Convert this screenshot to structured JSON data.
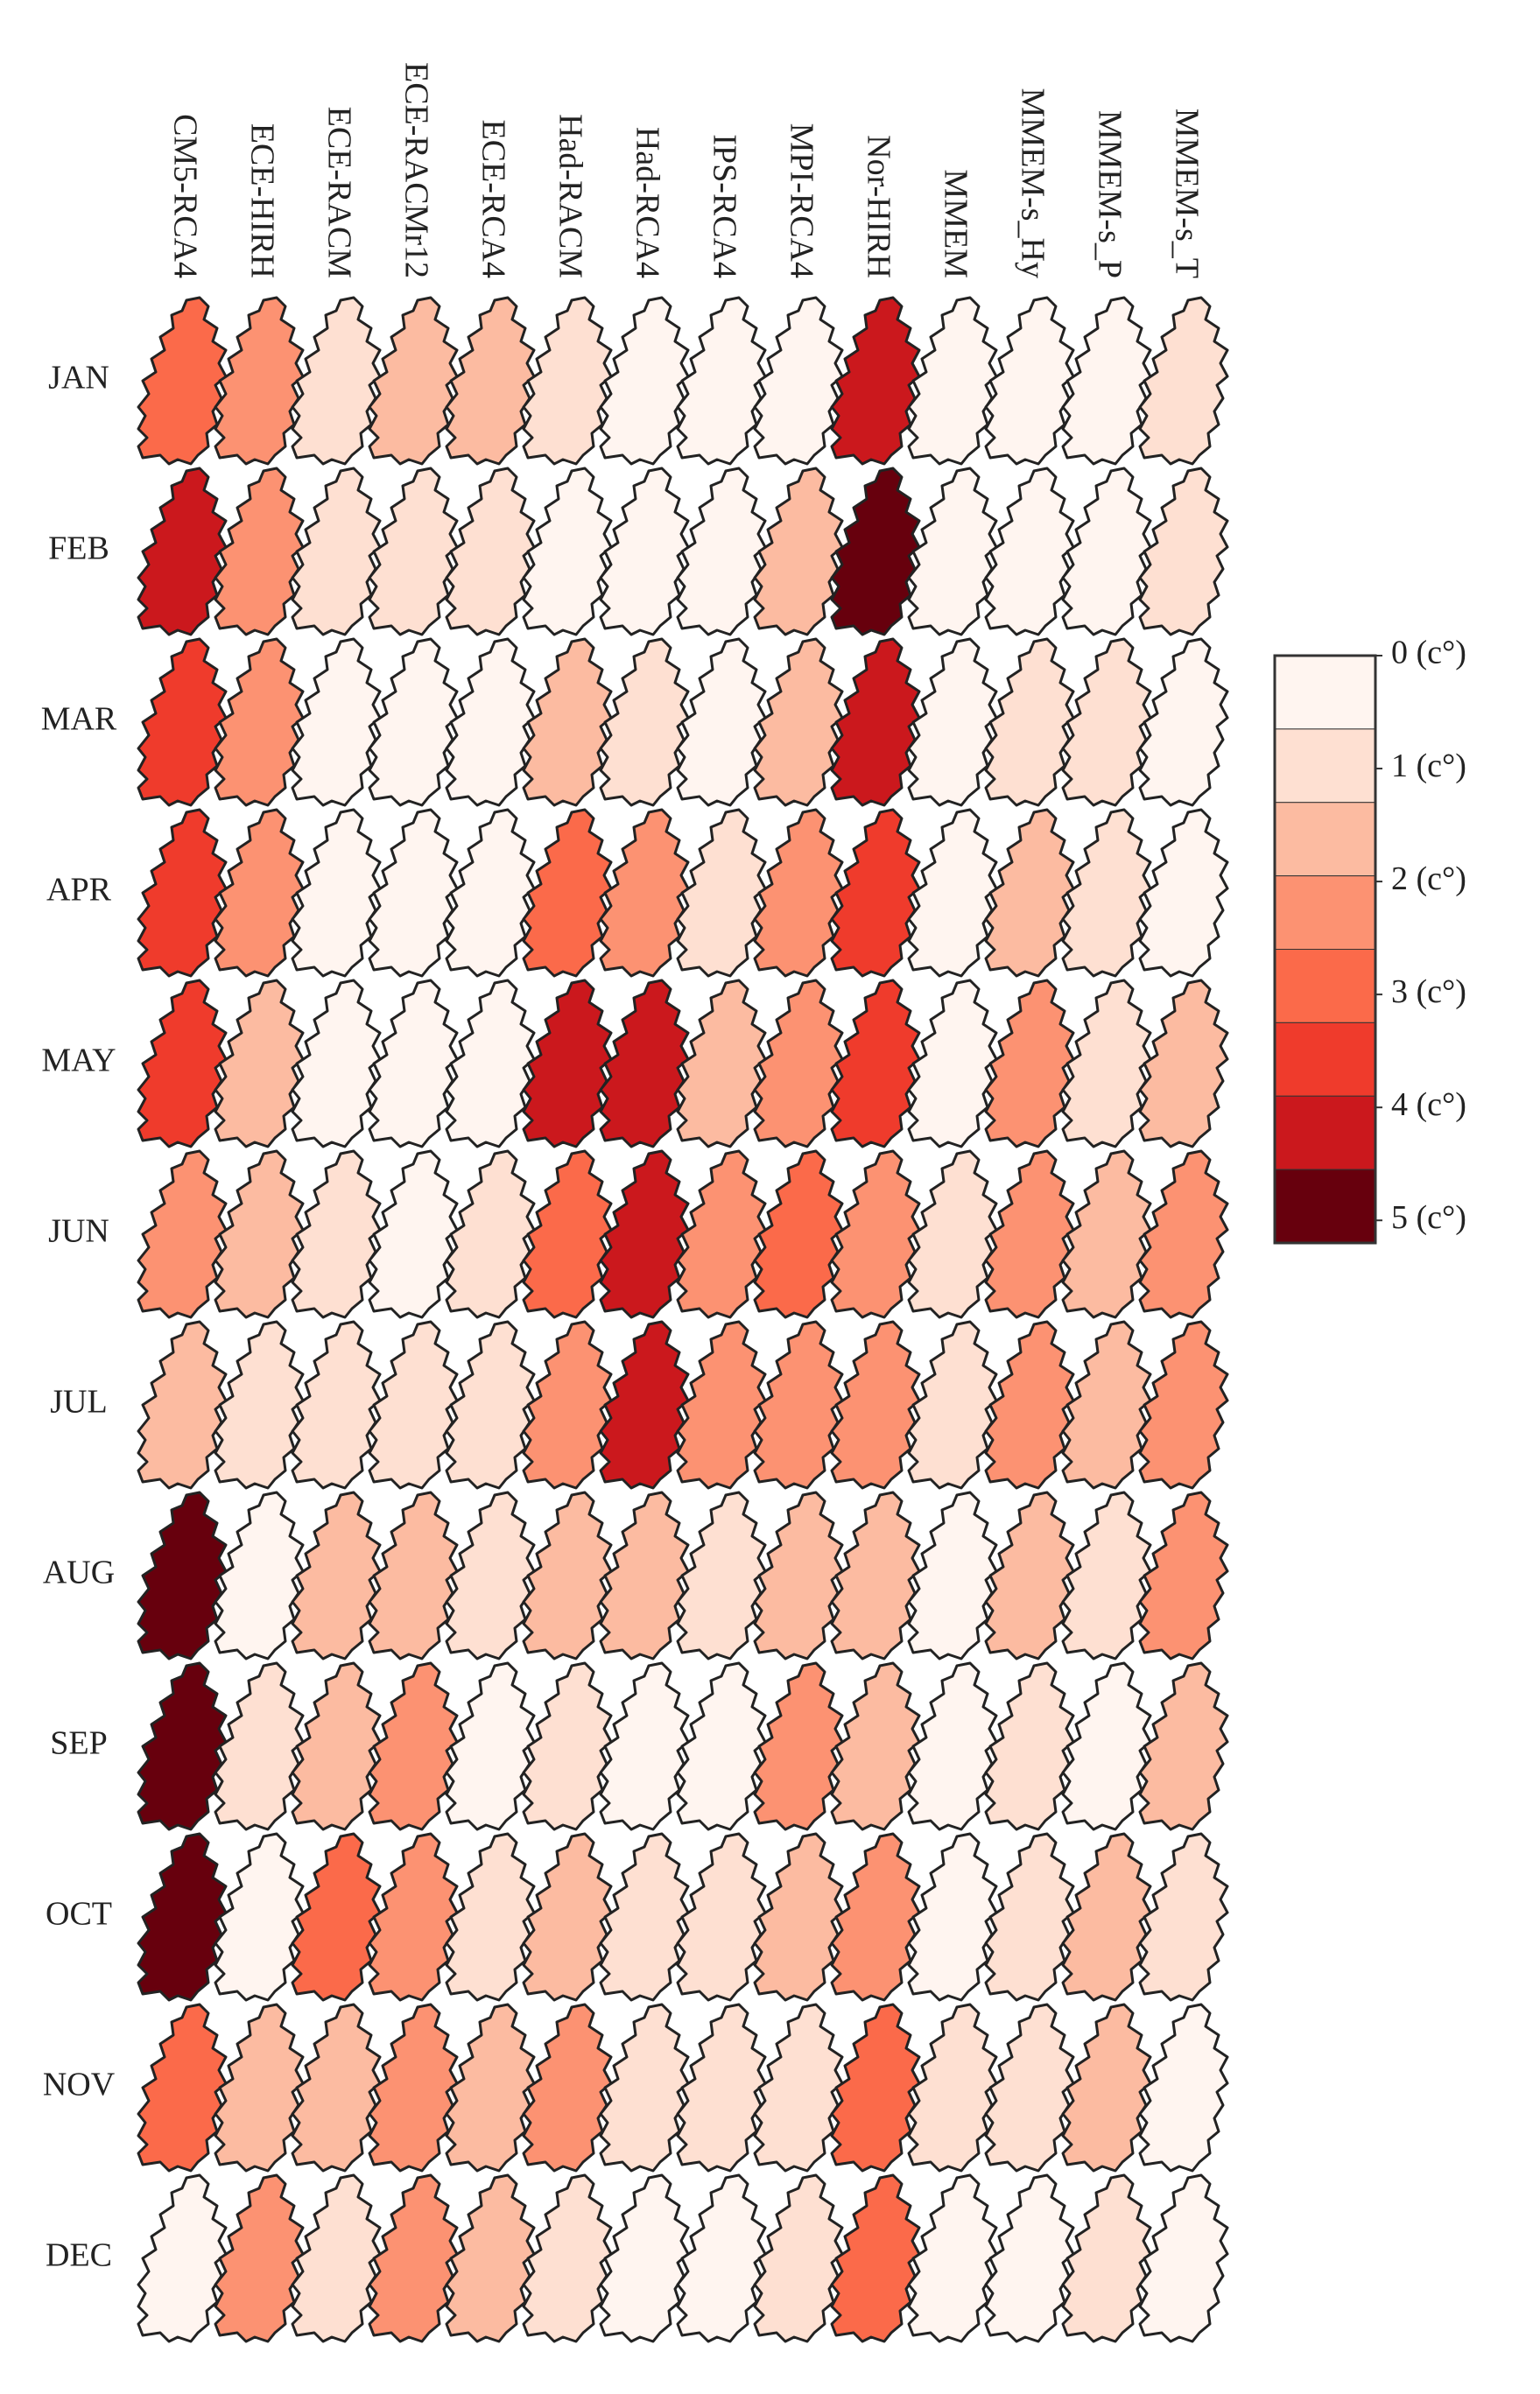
{
  "chart_data": {
    "type": "map-grid",
    "columns": [
      "CM5-RCA4",
      "ECE-HIRH",
      "ECE-RACM",
      "ECE-RACMr12",
      "ECE-RCA4",
      "Had-RACM",
      "Had-RCA4",
      "IPS-RCA4",
      "MPI-RCA4",
      "Nor-HIRH",
      "MMEM",
      "MMEM-s_Hy",
      "MMEM-s_P",
      "MMEM-s_T"
    ],
    "rows": [
      "JAN",
      "FEB",
      "MAR",
      "APR",
      "MAY",
      "JUN",
      "JUL",
      "AUG",
      "SEP",
      "OCT",
      "NOV",
      "DEC"
    ],
    "values": [
      [
        2.9,
        2.3,
        1.0,
        1.5,
        1.5,
        1.0,
        0.5,
        0.5,
        0.5,
        4.3,
        0.4,
        0.5,
        0.5,
        1.0
      ],
      [
        4.3,
        2.5,
        1.0,
        1.0,
        1.0,
        0.5,
        0.5,
        0.5,
        1.5,
        5.0,
        0.4,
        0.5,
        0.5,
        1.0
      ],
      [
        3.8,
        2.5,
        0.5,
        0.5,
        0.5,
        1.5,
        1.0,
        0.5,
        1.5,
        4.0,
        0.5,
        1.0,
        1.0,
        0.5
      ],
      [
        3.8,
        2.5,
        0.5,
        0.5,
        0.5,
        3.0,
        2.5,
        1.0,
        2.0,
        3.5,
        0.5,
        1.5,
        1.0,
        0.5
      ],
      [
        3.5,
        1.5,
        0.5,
        0.5,
        0.5,
        4.3,
        4.0,
        1.5,
        2.5,
        3.5,
        0.5,
        2.0,
        1.0,
        1.5
      ],
      [
        2.5,
        1.5,
        1.0,
        0.5,
        1.0,
        3.0,
        4.0,
        2.5,
        3.0,
        2.5,
        1.0,
        2.5,
        1.5,
        2.5
      ],
      [
        1.5,
        1.0,
        1.0,
        1.0,
        1.0,
        2.5,
        4.0,
        2.5,
        2.5,
        2.0,
        1.0,
        2.0,
        1.5,
        2.5
      ],
      [
        5.0,
        0.5,
        1.5,
        1.5,
        1.0,
        1.5,
        1.5,
        1.0,
        1.5,
        1.5,
        0.5,
        1.5,
        1.0,
        2.0
      ],
      [
        5.0,
        1.0,
        1.5,
        2.0,
        0.5,
        1.0,
        0.5,
        0.5,
        2.0,
        1.5,
        0.5,
        1.0,
        0.5,
        1.5
      ],
      [
        5.0,
        0.5,
        3.0,
        2.5,
        1.0,
        1.5,
        1.0,
        1.0,
        1.5,
        2.5,
        0.5,
        1.0,
        1.5,
        1.0
      ],
      [
        3.0,
        1.5,
        1.5,
        2.5,
        1.5,
        2.5,
        1.0,
        1.0,
        1.0,
        3.0,
        1.0,
        1.0,
        1.5,
        0.5
      ],
      [
        0.5,
        2.5,
        1.0,
        2.5,
        1.5,
        1.0,
        0.5,
        0.5,
        1.0,
        3.0,
        0.5,
        0.5,
        1.0,
        0.5
      ]
    ],
    "colors": [
      "#fff5f0",
      "#fee0d2",
      "#fcbba1",
      "#fc9272",
      "#fb6a4a",
      "#ef3b2c",
      "#cb181d",
      "#67000d"
    ],
    "clim": [
      0,
      5.2
    ],
    "cticks": [
      {
        "value": 0,
        "label": "0 (c°)"
      },
      {
        "value": 1,
        "label": "1 (c°)"
      },
      {
        "value": 2,
        "label": "2 (c°)"
      },
      {
        "value": 3,
        "label": "3 (c°)"
      },
      {
        "value": 4,
        "label": "4 (c°)"
      },
      {
        "value": 5,
        "label": "5 (c°)"
      }
    ]
  }
}
